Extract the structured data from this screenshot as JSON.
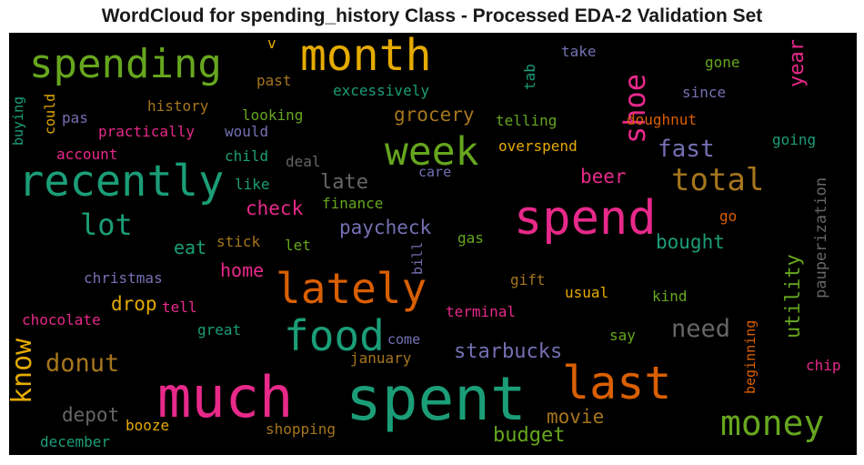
{
  "title": "WordCloud for spending_history Class - Processed EDA-2 Validation Set",
  "palette": {
    "background": "#000000",
    "teal": "#1b9e77",
    "orange": "#d95f02",
    "purple": "#7570b3",
    "pink": "#e7298a",
    "green": "#66a61e",
    "gold": "#e6ab02",
    "brown": "#a6761d",
    "gray": "#666666"
  },
  "words": [
    "much",
    "spent",
    "spend",
    "month",
    "spending",
    "recently",
    "week",
    "lately",
    "food",
    "last",
    "money",
    "shoe",
    "total",
    "lot",
    "know",
    "donut",
    "need",
    "grocery",
    "fast",
    "starbucks",
    "paycheck",
    "budget",
    "late",
    "check",
    "bought",
    "utility",
    "year",
    "beer",
    "eat",
    "home",
    "drop",
    "depot",
    "movie",
    "pauperization",
    "christmas",
    "chocolate",
    "excessively",
    "history",
    "practically",
    "looking",
    "telling",
    "overspend",
    "doughnut",
    "tab",
    "take",
    "gone",
    "since",
    "going",
    "past",
    "v",
    "buying",
    "could",
    "pas",
    "account",
    "would",
    "child",
    "deal",
    "care",
    "like",
    "finance",
    "stick",
    "let",
    "gas",
    "bill",
    "gift",
    "tell",
    "usual",
    "kind",
    "great",
    "terminal",
    "come",
    "say",
    "january",
    "beginning",
    "chip",
    "booze",
    "shopping",
    "december",
    "go"
  ]
}
